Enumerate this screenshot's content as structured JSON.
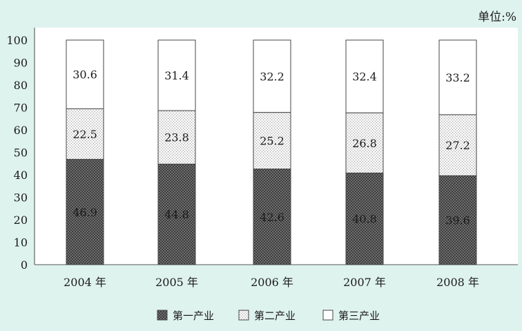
{
  "unit_label": "单位:%",
  "chart_data": {
    "type": "bar",
    "stacked": true,
    "categories": [
      "2004 年",
      "2005 年",
      "2006 年",
      "2007 年",
      "2008 年"
    ],
    "series": [
      {
        "name": "第一产业",
        "values": [
          46.9,
          44.8,
          42.6,
          40.8,
          39.6
        ],
        "fill": "dark-crosshatch"
      },
      {
        "name": "第二产业",
        "values": [
          22.5,
          23.8,
          25.2,
          26.8,
          27.2
        ],
        "fill": "light-dots"
      },
      {
        "name": "第三产业",
        "values": [
          30.6,
          31.4,
          32.2,
          32.4,
          33.2
        ],
        "fill": "white"
      }
    ],
    "ylim": [
      0,
      100
    ],
    "yticks": [
      0,
      10,
      20,
      30,
      40,
      50,
      60,
      70,
      80,
      90,
      100
    ],
    "legend": "bottom",
    "grid": false
  }
}
